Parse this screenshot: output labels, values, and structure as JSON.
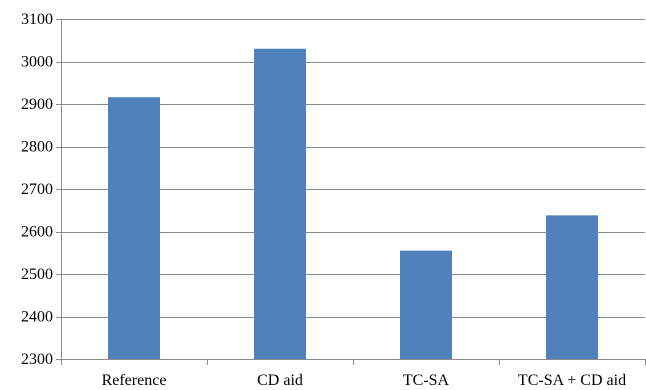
{
  "chart_data": {
    "type": "bar",
    "title": "",
    "xlabel": "",
    "ylabel": "",
    "categories": [
      "Reference",
      "CD aid",
      "TC-SA",
      "TC-SA + CD aid"
    ],
    "values": [
      2916,
      3030,
      2555,
      2638
    ],
    "ylim": [
      2300,
      3100
    ],
    "yticks": [
      2300,
      2400,
      2500,
      2600,
      2700,
      2800,
      2900,
      3000,
      3100
    ],
    "grid": true,
    "legend": "none",
    "colors": {
      "bar": "#4f81bd",
      "gridline": "#8c8c8c",
      "text": "#000000"
    }
  }
}
